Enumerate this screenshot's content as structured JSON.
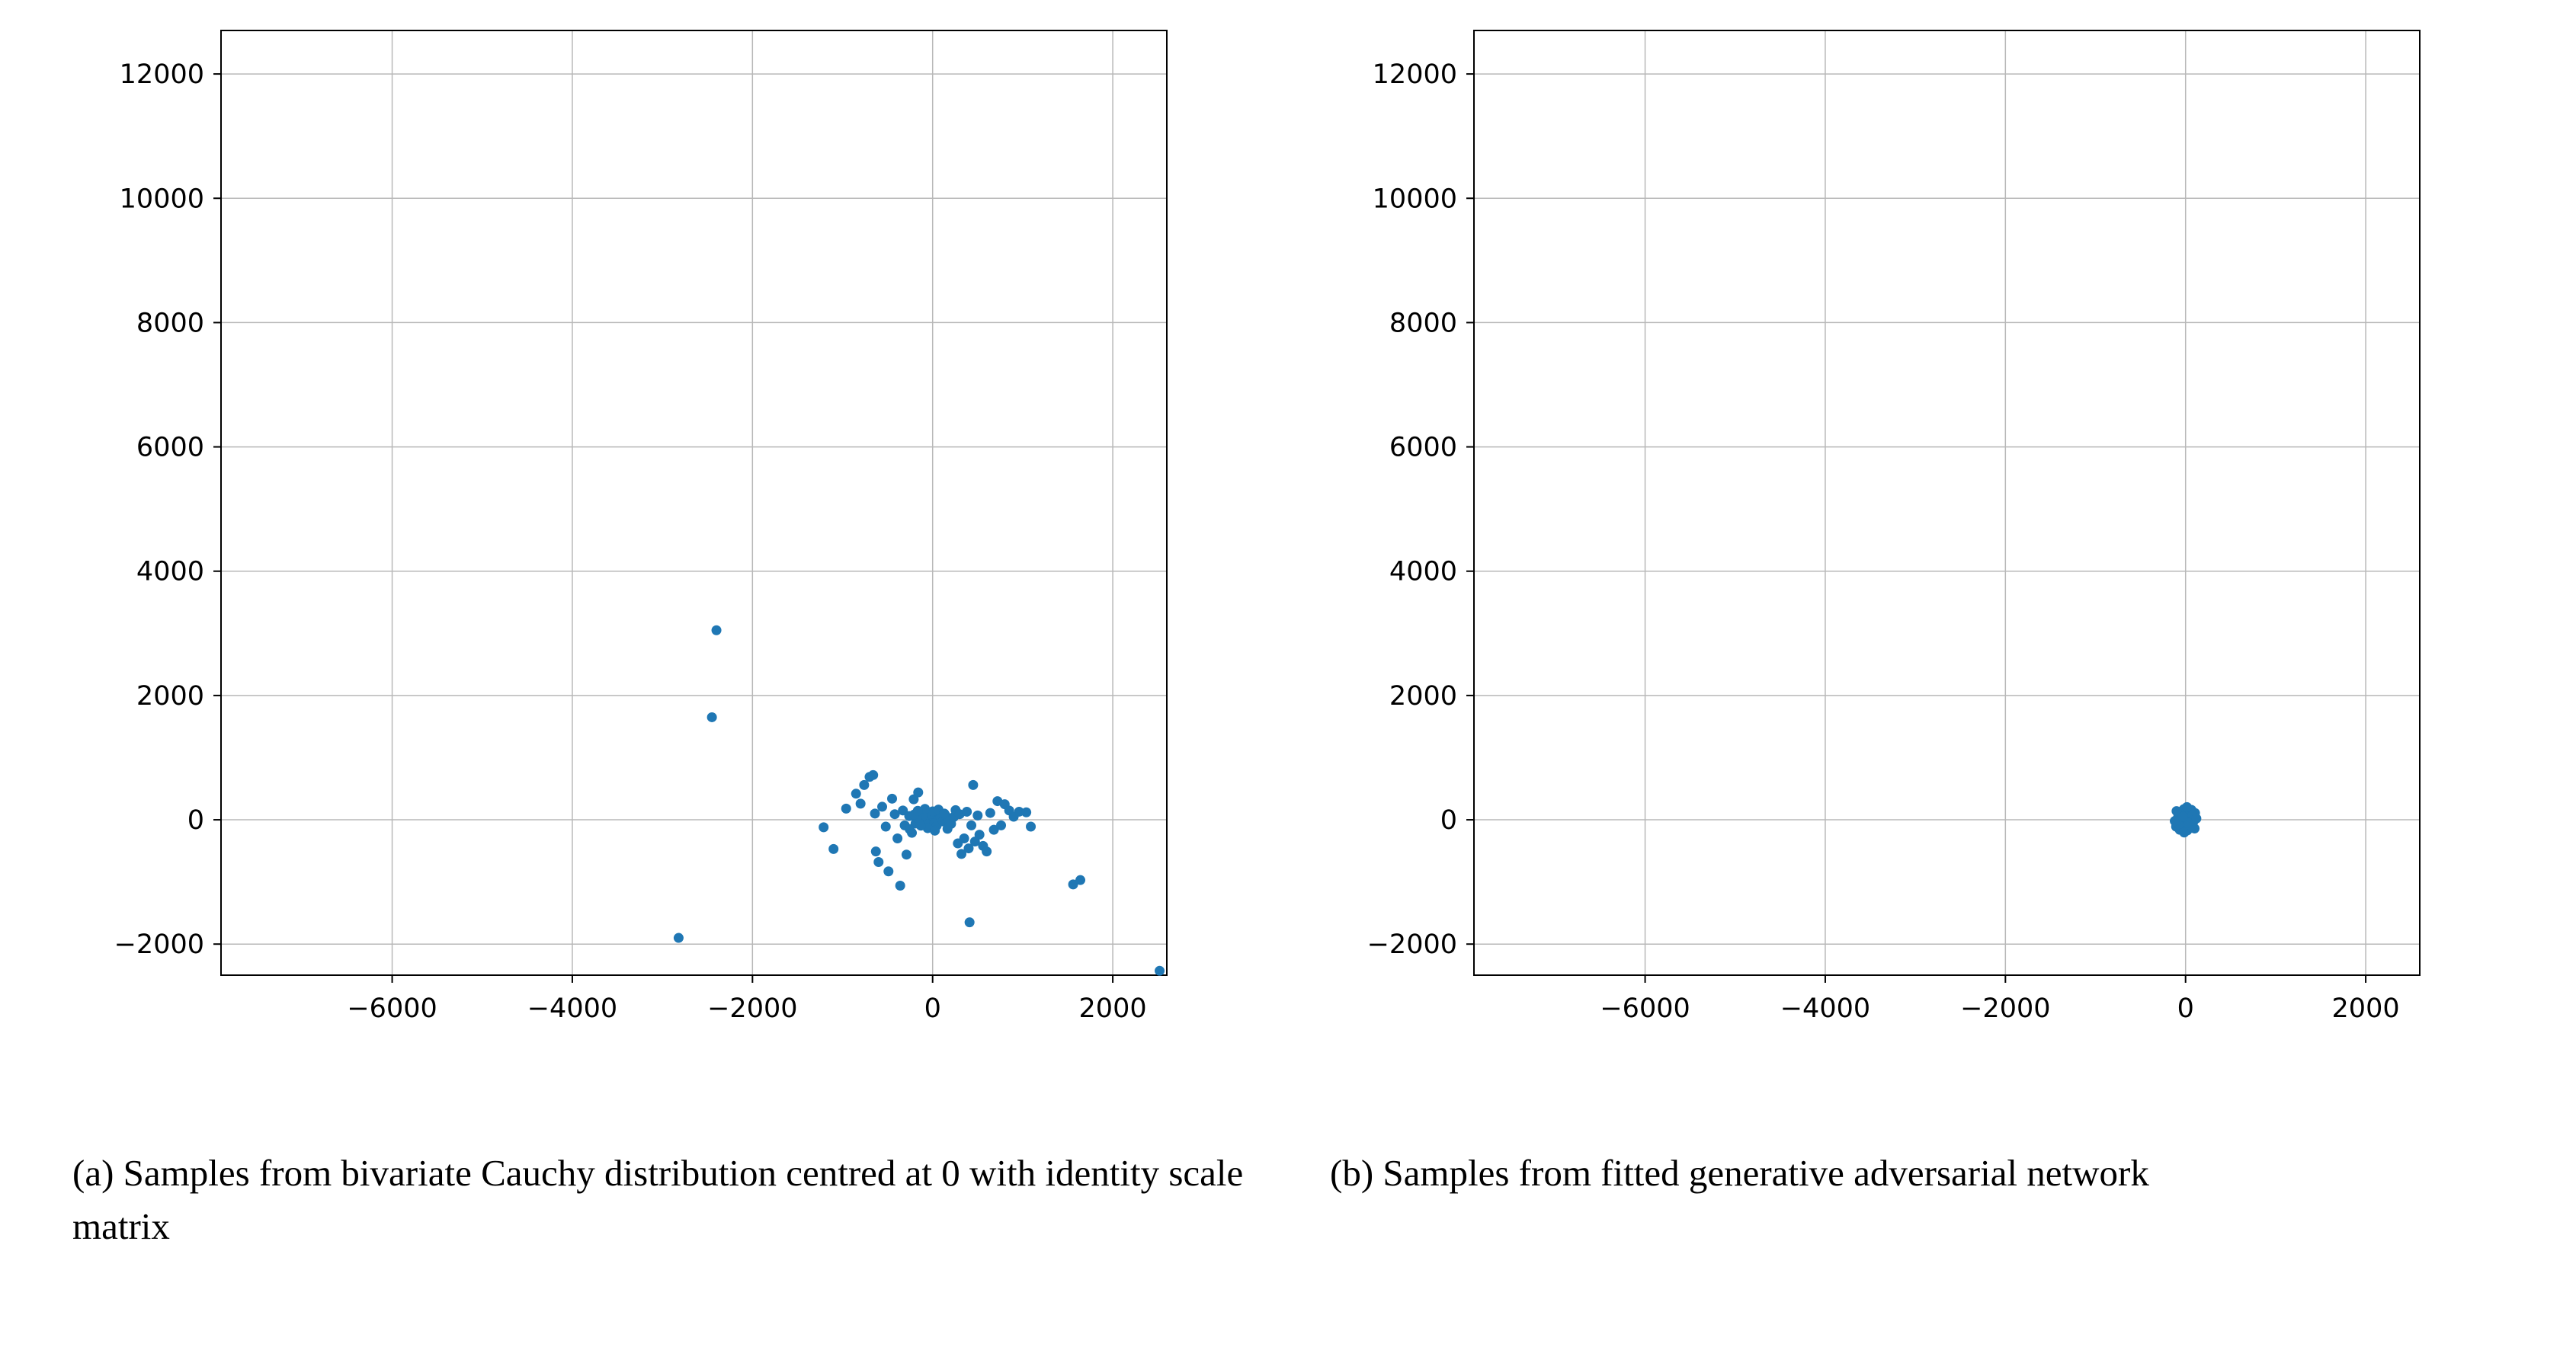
{
  "figure": {
    "background": "#ffffff",
    "grid_color": "#b8b8b8",
    "frame_color": "#000000",
    "tick_label_color": "#000000",
    "point_color": "#1f77b4"
  },
  "captions": {
    "a": "(a) Samples from bivariate Cauchy distribution centred at 0 with identity scale matrix",
    "b": "(b) Samples from fitted generative adversarial network"
  },
  "chart_data": [
    {
      "type": "scatter",
      "title": "",
      "caption": "(a) Samples from bivariate Cauchy distribution centred at 0 with identity scale matrix",
      "xlabel": "",
      "ylabel": "",
      "xlim": [
        -7900,
        2600
      ],
      "ylim": [
        -2500,
        12700
      ],
      "xticks": [
        -6000,
        -4000,
        -2000,
        0,
        2000
      ],
      "xtick_labels": [
        "−6000",
        "−4000",
        "−2000",
        "0",
        "2000"
      ],
      "yticks": [
        -2000,
        0,
        2000,
        4000,
        6000,
        8000,
        10000,
        12000
      ],
      "ytick_labels": [
        "−2000",
        "0",
        "2000",
        "4000",
        "6000",
        "8000",
        "10000",
        "12000"
      ],
      "grid": true,
      "legend": false,
      "marker_color": "#1f77b4",
      "points": [
        [
          -2400,
          3050
        ],
        [
          -2450,
          1650
        ],
        [
          -2820,
          -1900
        ],
        [
          410,
          -1650
        ],
        [
          1560,
          -1040
        ],
        [
          1640,
          -970
        ],
        [
          2520,
          -2430
        ],
        [
          -1210,
          -120
        ],
        [
          -1100,
          -470
        ],
        [
          -960,
          180
        ],
        [
          -850,
          420
        ],
        [
          -800,
          260
        ],
        [
          -760,
          560
        ],
        [
          -700,
          690
        ],
        [
          -660,
          720
        ],
        [
          -640,
          100
        ],
        [
          -630,
          -510
        ],
        [
          -600,
          -680
        ],
        [
          -560,
          210
        ],
        [
          -520,
          -110
        ],
        [
          -490,
          -830
        ],
        [
          -450,
          340
        ],
        [
          -420,
          90
        ],
        [
          -390,
          -300
        ],
        [
          -360,
          -1060
        ],
        [
          -330,
          150
        ],
        [
          -310,
          -90
        ],
        [
          -290,
          -560
        ],
        [
          -260,
          60
        ],
        [
          -230,
          -210
        ],
        [
          -210,
          330
        ],
        [
          -190,
          -60
        ],
        [
          -160,
          440
        ],
        [
          0,
          0
        ],
        [
          25,
          30
        ],
        [
          -30,
          -25
        ],
        [
          60,
          5
        ],
        [
          -60,
          15
        ],
        [
          5,
          65
        ],
        [
          15,
          -60
        ],
        [
          -90,
          -35
        ],
        [
          90,
          45
        ],
        [
          -20,
          95
        ],
        [
          45,
          -95
        ],
        [
          -115,
          55
        ],
        [
          115,
          -25
        ],
        [
          0,
          135
        ],
        [
          -55,
          -135
        ],
        [
          145,
          65
        ],
        [
          -145,
          -60
        ],
        [
          175,
          5
        ],
        [
          -175,
          35
        ],
        [
          205,
          -65
        ],
        [
          -205,
          85
        ],
        [
          235,
          45
        ],
        [
          65,
          165
        ],
        [
          -85,
          175
        ],
        [
          25,
          -175
        ],
        [
          165,
          -145
        ],
        [
          -165,
          145
        ],
        [
          255,
          155
        ],
        [
          -255,
          -150
        ],
        [
          130,
          100
        ],
        [
          -130,
          -95
        ],
        [
          280,
          -380
        ],
        [
          300,
          90
        ],
        [
          320,
          -550
        ],
        [
          350,
          -300
        ],
        [
          380,
          130
        ],
        [
          400,
          -460
        ],
        [
          430,
          -90
        ],
        [
          450,
          560
        ],
        [
          470,
          -350
        ],
        [
          500,
          70
        ],
        [
          520,
          -240
        ],
        [
          560,
          -420
        ],
        [
          600,
          -510
        ],
        [
          640,
          110
        ],
        [
          680,
          -160
        ],
        [
          720,
          300
        ],
        [
          760,
          -90
        ],
        [
          800,
          250
        ],
        [
          850,
          150
        ],
        [
          900,
          50
        ],
        [
          960,
          130
        ],
        [
          1040,
          120
        ],
        [
          1090,
          -110
        ]
      ]
    },
    {
      "type": "scatter",
      "title": "",
      "caption": "(b) Samples from fitted generative adversarial network",
      "xlabel": "",
      "ylabel": "",
      "xlim": [
        -7900,
        2600
      ],
      "ylim": [
        -2500,
        12700
      ],
      "xticks": [
        -6000,
        -4000,
        -2000,
        0,
        2000
      ],
      "xtick_labels": [
        "−6000",
        "−4000",
        "−2000",
        "0",
        "2000"
      ],
      "yticks": [
        -2000,
        0,
        2000,
        4000,
        6000,
        8000,
        10000,
        12000
      ],
      "ytick_labels": [
        "−2000",
        "0",
        "2000",
        "4000",
        "6000",
        "8000",
        "10000",
        "12000"
      ],
      "grid": true,
      "legend": false,
      "marker_color": "#1f77b4",
      "points": [
        [
          0,
          0
        ],
        [
          20,
          35
        ],
        [
          -25,
          -30
        ],
        [
          45,
          60
        ],
        [
          -45,
          -60
        ],
        [
          60,
          -45
        ],
        [
          -60,
          45
        ],
        [
          80,
          10
        ],
        [
          -80,
          -10
        ],
        [
          5,
          150
        ],
        [
          -5,
          -150
        ],
        [
          35,
          120
        ],
        [
          -35,
          -120
        ],
        [
          70,
          95
        ],
        [
          -70,
          -95
        ],
        [
          95,
          50
        ],
        [
          -95,
          -50
        ],
        [
          20,
          -170
        ],
        [
          -20,
          170
        ],
        [
          105,
          110
        ],
        [
          -105,
          -110
        ],
        [
          10,
          75
        ],
        [
          -10,
          -75
        ],
        [
          55,
          -110
        ],
        [
          -55,
          110
        ],
        [
          85,
          -35
        ],
        [
          -85,
          35
        ],
        [
          0,
          100
        ],
        [
          0,
          -100
        ],
        [
          40,
          5
        ],
        [
          -40,
          -5
        ],
        [
          65,
          160
        ],
        [
          -65,
          -160
        ],
        [
          50,
          -85
        ],
        [
          -50,
          85
        ],
        [
          100,
          -140
        ],
        [
          -100,
          140
        ],
        [
          15,
          205
        ],
        [
          -15,
          -205
        ],
        [
          75,
          70
        ],
        [
          -75,
          -70
        ],
        [
          120,
          20
        ],
        [
          -120,
          -20
        ],
        [
          30,
          -50
        ],
        [
          -30,
          50
        ]
      ]
    }
  ]
}
